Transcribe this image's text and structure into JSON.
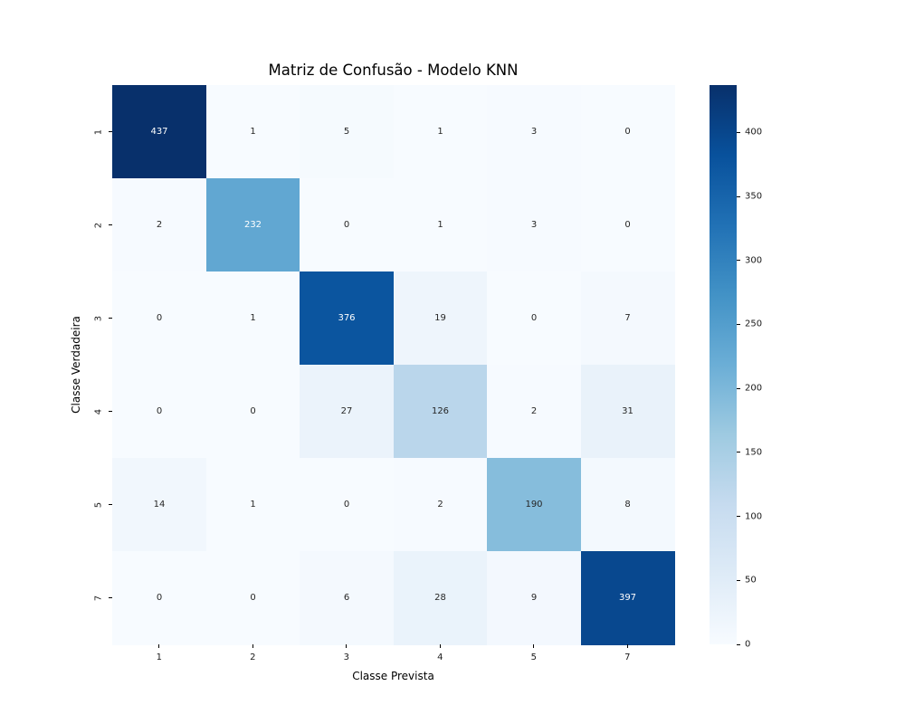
{
  "figure": {
    "background": "#ffffff"
  },
  "chart_data": {
    "type": "heatmap",
    "title": "Matriz de Confusão - Modelo KNN",
    "xlabel": "Classe Prevista",
    "ylabel": "Classe Verdadeira",
    "x_ticklabels": [
      "1",
      "2",
      "3",
      "4",
      "5",
      "7"
    ],
    "y_ticklabels": [
      "1",
      "2",
      "3",
      "4",
      "5",
      "7"
    ],
    "matrix": [
      [
        437,
        1,
        5,
        1,
        3,
        0
      ],
      [
        2,
        232,
        0,
        1,
        3,
        0
      ],
      [
        0,
        1,
        376,
        19,
        0,
        7
      ],
      [
        0,
        0,
        27,
        126,
        2,
        31
      ],
      [
        14,
        1,
        0,
        2,
        190,
        8
      ],
      [
        0,
        0,
        6,
        28,
        9,
        397
      ]
    ],
    "vmin": 0,
    "vmax": 437,
    "colormap": "Blues",
    "colormap_stops": [
      "#f7fbff",
      "#deebf7",
      "#c6dbef",
      "#9ecae1",
      "#6baed6",
      "#4292c6",
      "#2171b5",
      "#08519c",
      "#08306b"
    ],
    "colorbar_ticks": [
      "0",
      "50",
      "100",
      "150",
      "200",
      "250",
      "300",
      "350",
      "400"
    ],
    "annotation_dark_color": "#262626",
    "annotation_light_color": "#ffffff",
    "legend_position": "right-colorbar",
    "grid": false
  }
}
